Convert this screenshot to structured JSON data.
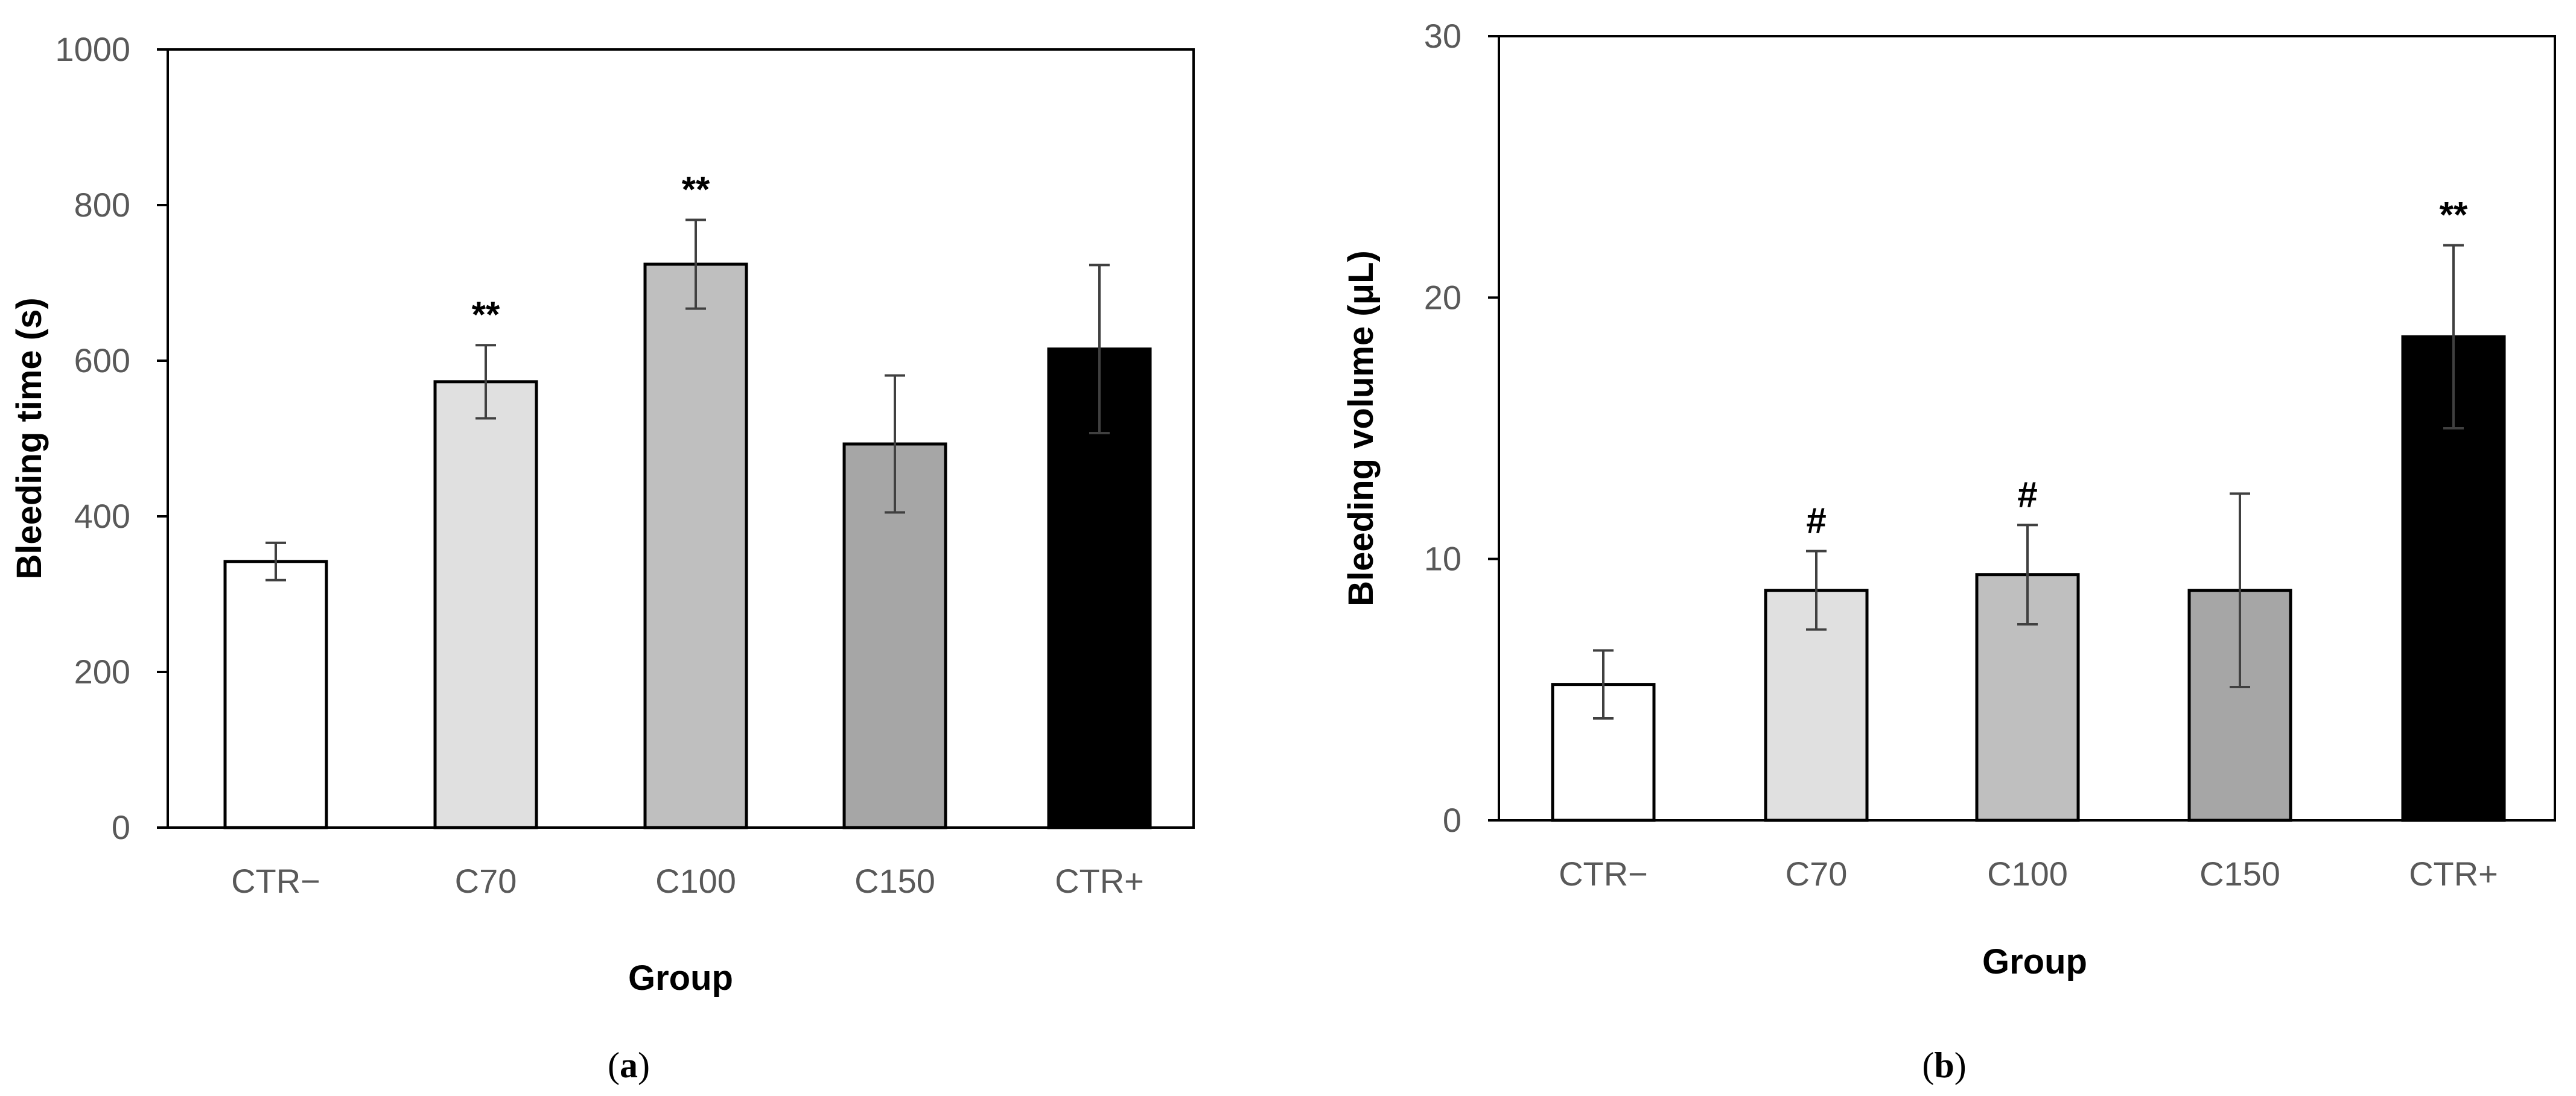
{
  "chart_data": [
    {
      "type": "bar",
      "panel_label": "a",
      "title": "",
      "xlabel": "Group",
      "ylabel": "Bleeding time (s)",
      "ylim": [
        0,
        1000
      ],
      "yticks": [
        0,
        200,
        400,
        600,
        800,
        1000
      ],
      "yticks_text": [
        "0",
        "200",
        "400",
        "600",
        "800",
        "1000"
      ],
      "grid": false,
      "categories": [
        "CTR−",
        "C70",
        "C100",
        "C150",
        "CTR+"
      ],
      "values": [
        342,
        573,
        724,
        493,
        615
      ],
      "errors": [
        24,
        47,
        57,
        88,
        108
      ],
      "significance": [
        "",
        "**",
        "**",
        "",
        ""
      ],
      "bar_colors": [
        "#ffffff",
        "#e0e0e0",
        "#bfbfbf",
        "#a6a6a6",
        "#000000"
      ]
    },
    {
      "type": "bar",
      "panel_label": "b",
      "title": "",
      "xlabel": "Group",
      "ylabel": "Bleeding volume (μL)",
      "ylim": [
        0,
        30
      ],
      "yticks": [
        0,
        10,
        20,
        30
      ],
      "yticks_text": [
        "0",
        "10",
        "20",
        "30"
      ],
      "grid": false,
      "categories": [
        "CTR−",
        "C70",
        "C100",
        "C150",
        "CTR+"
      ],
      "values": [
        5.2,
        8.8,
        9.4,
        8.8,
        18.5
      ],
      "errors": [
        1.3,
        1.5,
        1.9,
        3.7,
        3.5
      ],
      "significance": [
        "",
        "#",
        "#",
        "",
        "**"
      ],
      "bar_colors": [
        "#ffffff",
        "#e0e0e0",
        "#bfbfbf",
        "#a6a6a6",
        "#000000"
      ]
    }
  ],
  "colors": {
    "axis": "#000000",
    "tick_text": "#595959",
    "error_bar": "#404040",
    "bar_edge": "#000000"
  }
}
